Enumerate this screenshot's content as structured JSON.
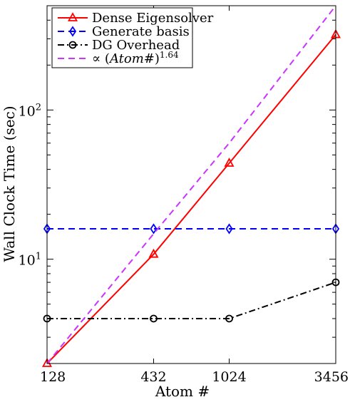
{
  "chart_data": {
    "type": "line",
    "title": "",
    "xlabel": "Atom #",
    "ylabel": "Wall Clock Time (sec)",
    "x_scale": "log",
    "y_scale": "log",
    "x": [
      128,
      432,
      1024,
      3456
    ],
    "x_tick_labels": [
      "128",
      "432",
      "1024",
      "3456"
    ],
    "y_major_ticks": [
      {
        "value": 10,
        "base": "10",
        "exp": "1"
      },
      {
        "value": 100,
        "base": "10",
        "exp": "2"
      }
    ],
    "xlim": [
      128,
      3456
    ],
    "ylim": [
      2,
      500
    ],
    "grid": false,
    "legend_position": "top-left",
    "series": [
      {
        "name": "Dense Eigensolver",
        "values": [
          2.0,
          10.8,
          44,
          320
        ],
        "color": "#ff0000",
        "style": "solid",
        "marker": "triangle"
      },
      {
        "name": "Generate basis",
        "values": [
          16,
          16,
          16,
          16
        ],
        "color": "#0000ff",
        "style": "dashed",
        "marker": "diamond"
      },
      {
        "name": "DG Overhead",
        "values": [
          4.0,
          4.0,
          4.0,
          7.0
        ],
        "color": "#000000",
        "style": "dashdot",
        "marker": "circle"
      },
      {
        "name_prefix": "∝ (",
        "name_var": "Atom#",
        "name_suffix": ")",
        "name_exp": "1.64",
        "values": [
          2.0,
          14.8,
          60,
          500
        ],
        "color": "#cc33ff",
        "style": "dashed",
        "marker": "none"
      }
    ]
  }
}
